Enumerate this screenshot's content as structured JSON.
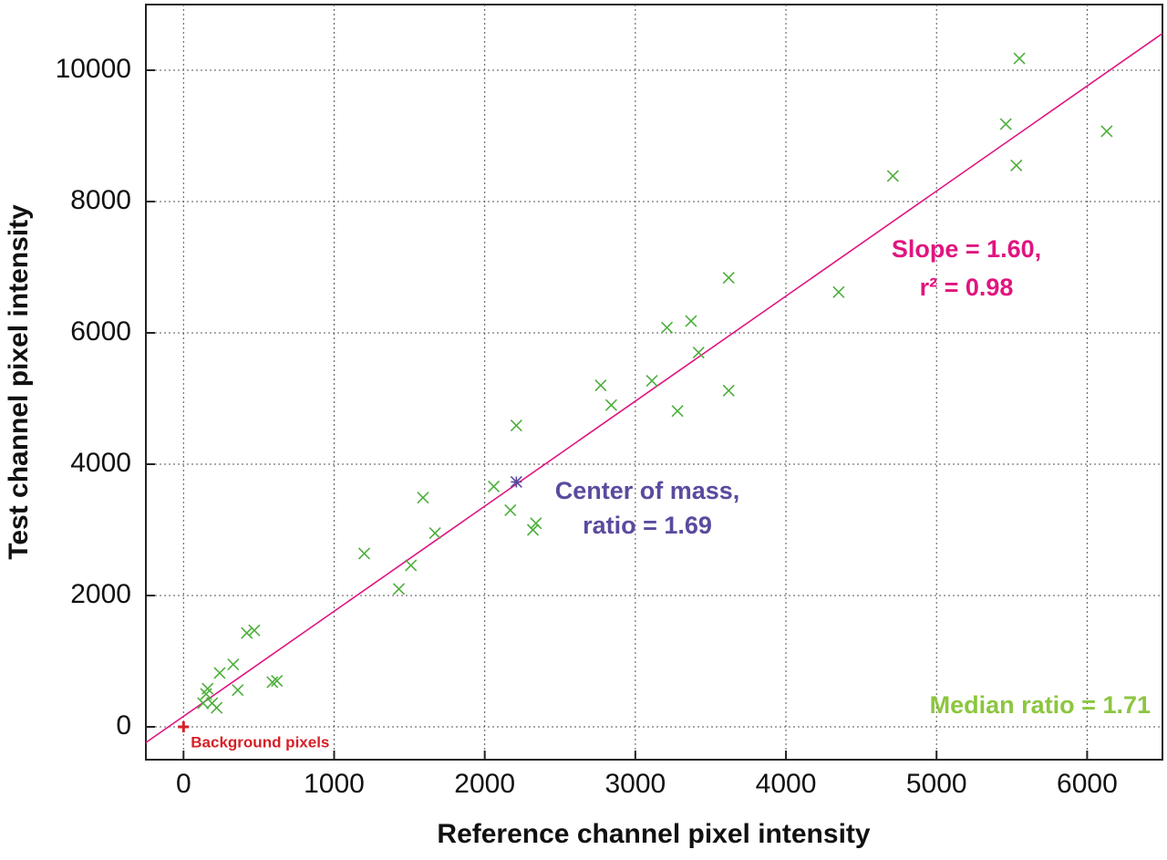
{
  "chart_data": {
    "type": "scatter",
    "xlabel": "Reference channel pixel intensity",
    "ylabel": "Test channel pixel intensity",
    "xlim": [
      -250,
      6500
    ],
    "ylim": [
      -500,
      11000
    ],
    "xticks": [
      0,
      1000,
      2000,
      3000,
      4000,
      5000,
      6000
    ],
    "yticks": [
      0,
      2000,
      4000,
      6000,
      8000,
      10000
    ],
    "grid": true,
    "series": [
      {
        "marker": "x",
        "color": "#4caf3a",
        "x": [
          5550,
          5460,
          6130,
          5530,
          4710,
          4350,
          3620,
          3210,
          3370,
          3420,
          3110,
          2770,
          2840,
          3280,
          3620,
          2210,
          2060,
          2170,
          2340,
          2320,
          1590,
          1670,
          1200,
          1510,
          1430,
          470,
          420,
          620,
          590,
          330,
          360,
          240,
          160,
          150,
          130,
          220,
          190
        ],
        "values": [
          10180,
          9180,
          9070,
          8550,
          8390,
          6620,
          6840,
          6080,
          6180,
          5700,
          5270,
          5200,
          4900,
          4810,
          5120,
          4590,
          3660,
          3300,
          3100,
          3000,
          3490,
          2950,
          2640,
          2460,
          2100,
          1470,
          1430,
          700,
          680,
          950,
          560,
          820,
          580,
          500,
          360,
          290,
          360
        ]
      },
      {
        "marker": "star",
        "color": "#5b4a9e",
        "x": [
          2210
        ],
        "values": [
          3730
        ]
      },
      {
        "marker": "plus",
        "color": "#d62027",
        "x": [
          0
        ],
        "values": [
          0
        ],
        "label": "Background pixels"
      }
    ],
    "fit_line": {
      "color": "#e0157f",
      "x": [
        -250,
        6500
      ],
      "y": [
        -240,
        10560
      ]
    },
    "annotations": [
      {
        "lines": [
          "Slope = 1.60,",
          "r² = 0.98"
        ],
        "color": "#e0157f"
      },
      {
        "lines": [
          "Center of mass,",
          "ratio = 1.69"
        ],
        "color": "#5b4a9e"
      },
      {
        "lines": [
          "Median ratio = 1.71"
        ],
        "color": "#8cc63f"
      }
    ]
  }
}
